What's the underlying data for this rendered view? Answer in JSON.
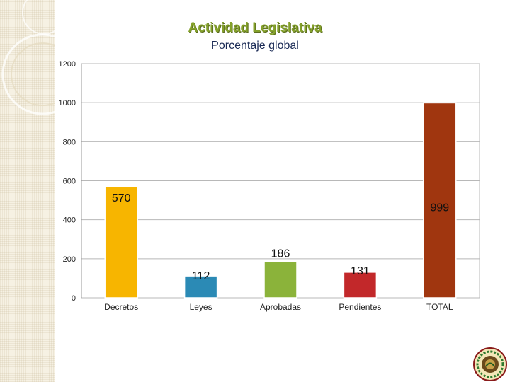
{
  "title": "Actividad Legislativa",
  "subtitle": "Porcentaje global",
  "chart_data": {
    "type": "bar",
    "categories": [
      "Decretos",
      "Leyes",
      "Aprobadas",
      "Pendientes",
      "TOTAL"
    ],
    "values": [
      570,
      112,
      186,
      131,
      999
    ],
    "data_labels": [
      "570",
      "112",
      "186",
      "131",
      "999"
    ],
    "ylim": [
      0,
      1200
    ],
    "yticks": [
      0,
      200,
      400,
      600,
      800,
      1000,
      1200
    ],
    "grid": true,
    "colors": {
      "Decretos": "#f7b500",
      "Leyes": "#2b8ab5",
      "Aprobadas": "#8bb33a",
      "Pendientes": "#c2282a",
      "TOTAL": "#a0360f"
    },
    "grid_color": "#b8b8b8"
  }
}
